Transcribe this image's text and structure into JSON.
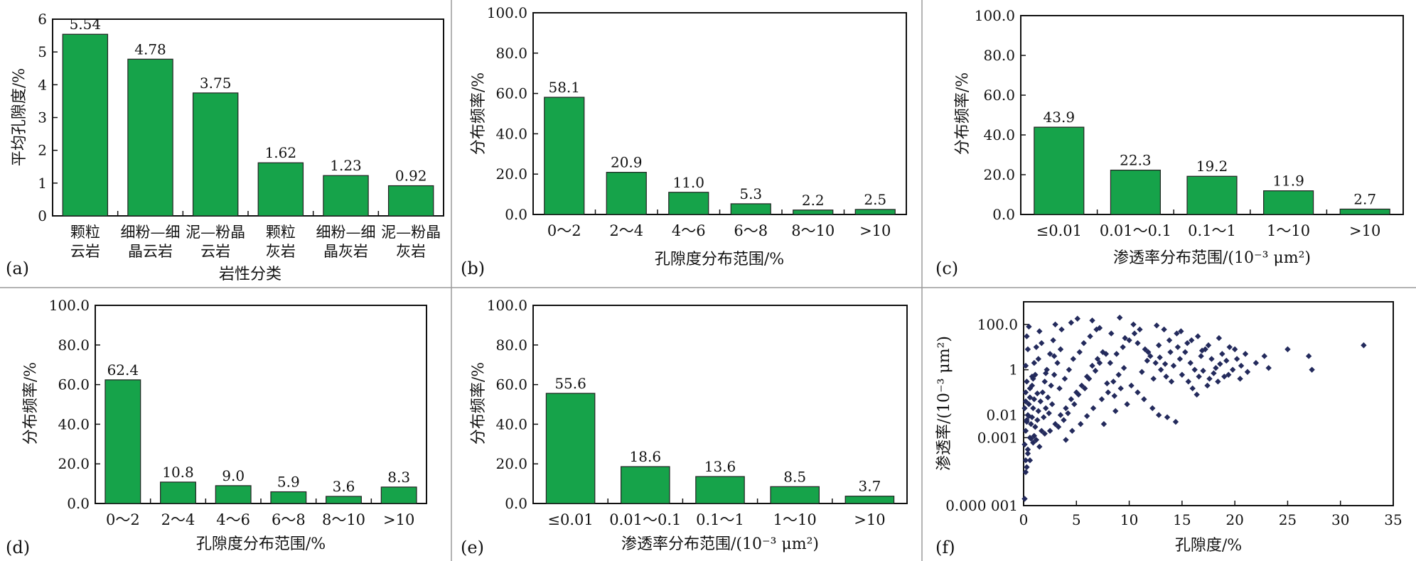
{
  "colors": {
    "bar": "#16a34a",
    "scatter_point": "#232a5c"
  },
  "chart_data": [
    {
      "panel": "(a)",
      "type": "bar",
      "categories": [
        [
          "颗粒",
          "云岩"
        ],
        [
          "细粉—细",
          "晶云岩"
        ],
        [
          "泥—粉晶",
          "云岩"
        ],
        [
          "颗粒",
          "灰岩"
        ],
        [
          "细粉—细",
          "晶灰岩"
        ],
        [
          "泥—粉晶",
          "灰岩"
        ]
      ],
      "values": [
        5.54,
        4.78,
        3.75,
        1.62,
        1.23,
        0.92
      ],
      "value_labels": [
        "5.54",
        "4.78",
        "3.75",
        "1.62",
        "1.23",
        "0.92"
      ],
      "ylim": [
        0,
        6
      ],
      "yticks": [
        "0",
        "1",
        "2",
        "3",
        "4",
        "5",
        "6"
      ],
      "xlabel": "岩性分类",
      "ylabel": "平均孔隙度/%"
    },
    {
      "panel": "(b)",
      "type": "bar",
      "categories": [
        [
          "0～2"
        ],
        [
          "2～4"
        ],
        [
          "4～6"
        ],
        [
          "6～8"
        ],
        [
          "8～10"
        ],
        [
          ">10"
        ]
      ],
      "values": [
        58.1,
        20.9,
        11.0,
        5.3,
        2.2,
        2.5
      ],
      "value_labels": [
        "58.1",
        "20.9",
        "11.0",
        "5.3",
        "2.2",
        "2.5"
      ],
      "ylim": [
        0,
        100
      ],
      "yticks": [
        "0.0",
        "20.0",
        "40.0",
        "60.0",
        "80.0",
        "100.0"
      ],
      "xlabel": "孔隙度分布范围/%",
      "ylabel": "分布频率/%"
    },
    {
      "panel": "(c)",
      "type": "bar",
      "categories": [
        [
          "≤0.01"
        ],
        [
          "0.01～0.1"
        ],
        [
          "0.1～1"
        ],
        [
          "1～10"
        ],
        [
          ">10"
        ]
      ],
      "values": [
        43.9,
        22.3,
        19.2,
        11.9,
        2.7
      ],
      "value_labels": [
        "43.9",
        "22.3",
        "19.2",
        "11.9",
        "2.7"
      ],
      "ylim": [
        0,
        100
      ],
      "yticks": [
        "0.0",
        "20.0",
        "40.0",
        "60.0",
        "80.0",
        "100.0"
      ],
      "xlabel": "渗透率分布范围/(10⁻³ μm²)",
      "ylabel": "分布频率/%"
    },
    {
      "panel": "(d)",
      "type": "bar",
      "categories": [
        [
          "0～2"
        ],
        [
          "2～4"
        ],
        [
          "4～6"
        ],
        [
          "6～8"
        ],
        [
          "8～10"
        ],
        [
          ">10"
        ]
      ],
      "values": [
        62.4,
        10.8,
        9.0,
        5.9,
        3.6,
        8.3
      ],
      "value_labels": [
        "62.4",
        "10.8",
        "9.0",
        "5.9",
        "3.6",
        "8.3"
      ],
      "ylim": [
        0,
        100
      ],
      "yticks": [
        "0.0",
        "20.0",
        "40.0",
        "60.0",
        "80.0",
        "100.0"
      ],
      "xlabel": "孔隙度分布范围/%",
      "ylabel": "分布频率/%"
    },
    {
      "panel": "(e)",
      "type": "bar",
      "categories": [
        [
          "≤0.01"
        ],
        [
          "0.01～0.1"
        ],
        [
          "0.1～1"
        ],
        [
          "1～10"
        ],
        [
          ">10"
        ]
      ],
      "values": [
        55.6,
        18.6,
        13.6,
        8.5,
        3.7
      ],
      "value_labels": [
        "55.6",
        "18.6",
        "13.6",
        "8.5",
        "3.7"
      ],
      "ylim": [
        0,
        100
      ],
      "yticks": [
        "0.0",
        "20.0",
        "40.0",
        "60.0",
        "80.0",
        "100.0"
      ],
      "xlabel": "渗透率分布范围/(10⁻³ μm²)",
      "ylabel": "分布频率/%"
    },
    {
      "panel": "(f)",
      "type": "scatter",
      "xlim": [
        0,
        35
      ],
      "xticks": [
        "0",
        "5",
        "10",
        "15",
        "20",
        "25",
        "30",
        "35"
      ],
      "yscale": "log",
      "ylim": [
        1e-06,
        1000
      ],
      "yticks": [
        {
          "value": 1e-06,
          "label": "0.000 001"
        },
        {
          "value": 0.001,
          "label": "0.001"
        },
        {
          "value": 0.01,
          "label": "0.01"
        },
        {
          "value": 1,
          "label": "1"
        },
        {
          "value": 100,
          "label": "100.0"
        }
      ],
      "xlabel": "孔隙度/%",
      "ylabel": "渗透率/(10⁻³ μm²)",
      "points": [
        [
          0.1,
          0.0005
        ],
        [
          0.2,
          0.002
        ],
        [
          0.3,
          0.005
        ],
        [
          0.4,
          0.01
        ],
        [
          0.5,
          0.03
        ],
        [
          0.1,
          0.02
        ],
        [
          0.2,
          0.1
        ],
        [
          0.3,
          0.3
        ],
        [
          0.2,
          1.5
        ],
        [
          0.4,
          8
        ],
        [
          0.3,
          30
        ],
        [
          0.5,
          80
        ],
        [
          0.6,
          0.001
        ],
        [
          0.7,
          0.004
        ],
        [
          0.8,
          0.008
        ],
        [
          0.9,
          0.02
        ],
        [
          1.0,
          0.05
        ],
        [
          0.6,
          0.15
        ],
        [
          0.8,
          0.5
        ],
        [
          1.0,
          2
        ],
        [
          1.2,
          10
        ],
        [
          1.5,
          50
        ],
        [
          1.1,
          0.003
        ],
        [
          1.3,
          0.006
        ],
        [
          1.4,
          0.015
        ],
        [
          1.6,
          0.04
        ],
        [
          1.8,
          0.1
        ],
        [
          2.0,
          0.3
        ],
        [
          2.2,
          1
        ],
        [
          2.5,
          5
        ],
        [
          2.8,
          20
        ],
        [
          3.0,
          100
        ],
        [
          1.7,
          0.002
        ],
        [
          1.9,
          0.008
        ],
        [
          2.1,
          0.02
        ],
        [
          2.3,
          0.06
        ],
        [
          2.6,
          0.2
        ],
        [
          2.9,
          0.6
        ],
        [
          3.2,
          2
        ],
        [
          3.5,
          8
        ],
        [
          0.1,
          2e-06
        ],
        [
          0.2,
          3e-05
        ],
        [
          0.4,
          0.0002
        ],
        [
          0.6,
          0.0001
        ],
        [
          0.9,
          0.0006
        ],
        [
          1.2,
          0.0008
        ],
        [
          0.3,
          5e-05
        ],
        [
          1.5,
          0.0004
        ],
        [
          2.0,
          0.0015
        ],
        [
          2.5,
          0.002
        ],
        [
          3.0,
          0.004
        ],
        [
          3.5,
          0.01
        ],
        [
          4.0,
          0.02
        ],
        [
          4.5,
          0.05
        ],
        [
          5.0,
          0.1
        ],
        [
          5.5,
          0.2
        ],
        [
          6.0,
          0.5
        ],
        [
          6.5,
          1.5
        ],
        [
          7.0,
          3
        ],
        [
          7.5,
          6
        ],
        [
          3.3,
          0.003
        ],
        [
          3.8,
          0.006
        ],
        [
          4.2,
          0.012
        ],
        [
          4.8,
          0.03
        ],
        [
          5.2,
          0.08
        ],
        [
          5.8,
          0.15
        ],
        [
          6.2,
          0.4
        ],
        [
          6.8,
          0.9
        ],
        [
          7.2,
          2
        ],
        [
          7.8,
          5
        ],
        [
          4.0,
          0.0008
        ],
        [
          4.6,
          0.002
        ],
        [
          5.4,
          0.004
        ],
        [
          6.0,
          0.009
        ],
        [
          6.6,
          0.02
        ],
        [
          7.4,
          0.05
        ],
        [
          8.0,
          0.1
        ],
        [
          8.5,
          0.3
        ],
        [
          9.0,
          0.6
        ],
        [
          9.5,
          1.2
        ],
        [
          8.2,
          2
        ],
        [
          8.8,
          5
        ],
        [
          9.4,
          10
        ],
        [
          10.0,
          20
        ],
        [
          10.5,
          40
        ],
        [
          11.0,
          60
        ],
        [
          3.6,
          60
        ],
        [
          4.5,
          120
        ],
        [
          5.1,
          180
        ],
        [
          6.5,
          150
        ],
        [
          7.2,
          70
        ],
        [
          8.3,
          40
        ],
        [
          9.6,
          25
        ],
        [
          10.8,
          15
        ],
        [
          11.5,
          8
        ],
        [
          12.0,
          4
        ],
        [
          12.5,
          2
        ],
        [
          13.0,
          1
        ],
        [
          13.5,
          0.5
        ],
        [
          14.0,
          0.3
        ],
        [
          10.2,
          0.2
        ],
        [
          10.8,
          0.1
        ],
        [
          11.4,
          0.05
        ],
        [
          12.2,
          0.02
        ],
        [
          12.8,
          0.01
        ],
        [
          13.6,
          0.008
        ],
        [
          14.4,
          0.005
        ],
        [
          9.8,
          0.03
        ],
        [
          8.7,
          0.015
        ],
        [
          7.6,
          0.004
        ],
        [
          14.2,
          1.5
        ],
        [
          14.8,
          3
        ],
        [
          15.3,
          6
        ],
        [
          15.8,
          2
        ],
        [
          16.2,
          1
        ],
        [
          16.8,
          4
        ],
        [
          17.2,
          8
        ],
        [
          17.8,
          3
        ],
        [
          18.2,
          1.2
        ],
        [
          18.8,
          5
        ],
        [
          15.0,
          0.6
        ],
        [
          15.6,
          0.3
        ],
        [
          16.0,
          0.15
        ],
        [
          16.6,
          0.5
        ],
        [
          17.0,
          0.9
        ],
        [
          17.6,
          0.4
        ],
        [
          18.0,
          0.7
        ],
        [
          18.6,
          1.8
        ],
        [
          19.2,
          2.5
        ],
        [
          19.8,
          1
        ],
        [
          20.2,
          3
        ],
        [
          20.6,
          1.5
        ],
        [
          21.2,
          0.8
        ],
        [
          22.0,
          2
        ],
        [
          22.8,
          4
        ],
        [
          23.2,
          1.2
        ],
        [
          19.5,
          10
        ],
        [
          18.5,
          25
        ],
        [
          17.5,
          12
        ],
        [
          16.5,
          30
        ],
        [
          15.5,
          15
        ],
        [
          14.5,
          40
        ],
        [
          13.8,
          20
        ],
        [
          12.8,
          12
        ],
        [
          11.8,
          6
        ],
        [
          20.0,
          8
        ],
        [
          21.0,
          5
        ],
        [
          19.0,
          0.5
        ],
        [
          20.5,
          0.4
        ],
        [
          16.4,
          0.08
        ],
        [
          25.0,
          8
        ],
        [
          27.0,
          4
        ],
        [
          27.3,
          1
        ],
        [
          32.2,
          12
        ],
        [
          0.2,
          0.04
        ],
        [
          0.5,
          0.009
        ],
        [
          0.8,
          0.2
        ],
        [
          1.1,
          0.6
        ],
        [
          1.4,
          3
        ],
        [
          1.7,
          15
        ],
        [
          2.4,
          0.012
        ],
        [
          2.7,
          0.03
        ],
        [
          3.4,
          0.15
        ],
        [
          3.9,
          0.4
        ],
        [
          4.3,
          1
        ],
        [
          4.7,
          3
        ],
        [
          5.3,
          6
        ],
        [
          5.7,
          15
        ],
        [
          6.3,
          30
        ],
        [
          6.9,
          60
        ],
        [
          0.2,
          0.0001
        ],
        [
          0.4,
          0.0003
        ],
        [
          0.7,
          0.0009
        ],
        [
          1.0,
          0.0012
        ],
        [
          0.3,
          0.006
        ],
        [
          0.6,
          0.06
        ],
        [
          0.9,
          0.4
        ],
        [
          1.3,
          0.09
        ],
        [
          2.1,
          0.7
        ],
        [
          2.9,
          4
        ],
        [
          11.2,
          0.8
        ],
        [
          11.7,
          2.5
        ],
        [
          12.3,
          0.4
        ],
        [
          12.9,
          3.5
        ],
        [
          13.4,
          1.8
        ],
        [
          13.9,
          6
        ],
        [
          14.6,
          10
        ],
        [
          9.2,
          0.15
        ],
        [
          8.6,
          0.07
        ],
        [
          7.9,
          0.25
        ],
        [
          17.4,
          0.2
        ],
        [
          18.4,
          0.3
        ],
        [
          19.4,
          0.6
        ],
        [
          16.9,
          7
        ],
        [
          15.9,
          20
        ],
        [
          14.9,
          50
        ],
        [
          13.3,
          60
        ],
        [
          12.6,
          90
        ],
        [
          10.4,
          100
        ],
        [
          9.1,
          200
        ]
      ]
    }
  ],
  "panel_tags": [
    "(a)",
    "(b)",
    "(c)",
    "(d)",
    "(e)",
    "(f)"
  ]
}
